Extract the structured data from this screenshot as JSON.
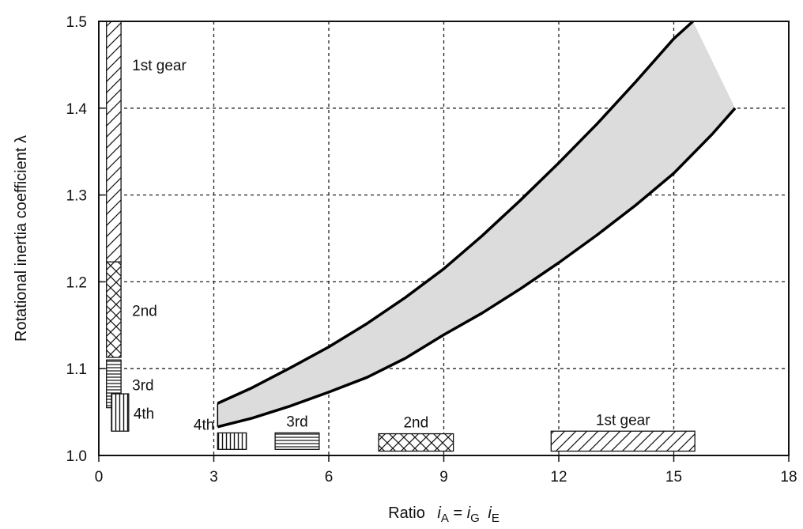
{
  "chart_data": {
    "type": "area",
    "title": "",
    "xlabel": {
      "prefix": "Ratio",
      "i": "i",
      "sub_A": "A",
      "eq": "=",
      "sub_G": "G",
      "sub_E": "E"
    },
    "ylabel": "Rotational inertia coefficient  λ",
    "xlim": [
      0,
      18
    ],
    "ylim": [
      1.0,
      1.5
    ],
    "x_ticks": [
      "0",
      "3",
      "6",
      "9",
      "12",
      "15",
      "18"
    ],
    "y_ticks": [
      "1.0",
      "1.1",
      "1.2",
      "1.3",
      "1.4",
      "1.5"
    ],
    "grid": "dashed",
    "band": {
      "fill": "#dcdcdc",
      "upper": {
        "x": [
          3.1,
          4,
          5,
          6,
          7,
          8,
          9,
          10,
          11,
          12,
          13,
          14,
          15,
          15.5
        ],
        "y": [
          1.06,
          1.078,
          1.101,
          1.125,
          1.152,
          1.182,
          1.215,
          1.253,
          1.294,
          1.337,
          1.382,
          1.43,
          1.48,
          1.5
        ]
      },
      "lower": {
        "x": [
          3.1,
          4,
          5,
          6,
          7,
          8,
          9,
          10,
          11,
          12,
          13,
          14,
          15,
          16,
          16.6
        ],
        "y": [
          1.033,
          1.043,
          1.057,
          1.073,
          1.09,
          1.112,
          1.139,
          1.164,
          1.192,
          1.222,
          1.254,
          1.288,
          1.325,
          1.37,
          1.4
        ]
      }
    },
    "x_ranges": [
      {
        "label": "4th",
        "pattern": "vlines",
        "x": [
          3.1,
          3.85
        ],
        "y": [
          1.007,
          1.026
        ]
      },
      {
        "label": "3rd",
        "pattern": "hlines",
        "x": [
          4.6,
          5.75
        ],
        "y": [
          1.007,
          1.026
        ]
      },
      {
        "label": "2nd",
        "pattern": "cross",
        "x": [
          7.3,
          9.25
        ],
        "y": [
          1.005,
          1.025
        ]
      },
      {
        "label": "1st gear",
        "pattern": "diag",
        "x": [
          11.8,
          15.55
        ],
        "y": [
          1.005,
          1.028
        ]
      }
    ],
    "y_ranges": [
      {
        "label": "1st gear",
        "pattern": "diag",
        "x": [
          0.2,
          0.58
        ],
        "y": [
          1.222,
          1.5
        ]
      },
      {
        "label": "2nd",
        "pattern": "cross",
        "x": [
          0.2,
          0.58
        ],
        "y": [
          1.113,
          1.223
        ]
      },
      {
        "label": "3rd",
        "pattern": "hlines",
        "x": [
          0.2,
          0.58
        ],
        "y": [
          1.055,
          1.11
        ]
      },
      {
        "label": "4th",
        "pattern": "vlines",
        "x": [
          0.33,
          0.78
        ],
        "y": [
          1.028,
          1.071
        ]
      }
    ]
  }
}
